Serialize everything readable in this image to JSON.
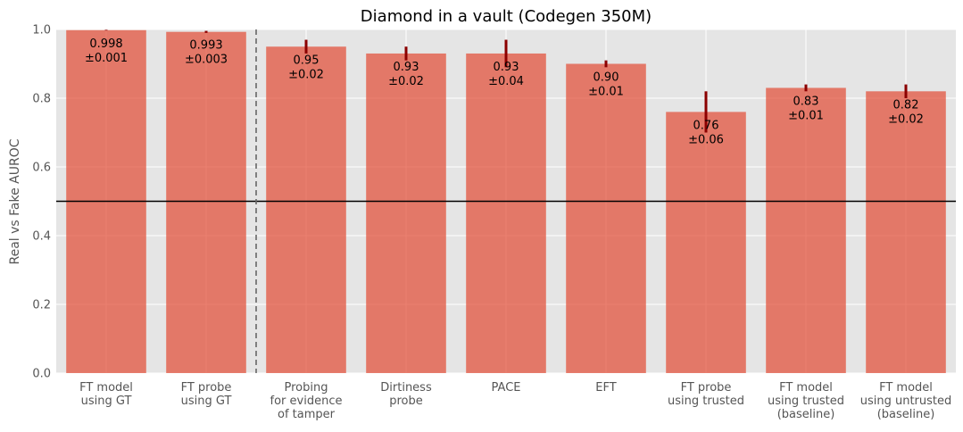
{
  "chart_data": {
    "type": "bar",
    "title": "Diamond in a vault (Codegen 350M)",
    "xlabel": "",
    "ylabel": "Real vs Fake AUROC",
    "ylim": [
      0,
      1.0
    ],
    "yticks": [
      "0.0",
      "0.2",
      "0.4",
      "0.6",
      "0.8",
      "1.0"
    ],
    "grid": true,
    "reference_line": 0.5,
    "separator_after_index": 1,
    "categories": [
      "FT model\nusing GT",
      "FT probe\nusing GT",
      "Probing\nfor evidence\nof tamper",
      "Dirtiness\nprobe",
      "PACE",
      "EFT",
      "FT probe\nusing trusted",
      "FT model\nusing trusted\n(baseline)",
      "FT model\nusing untrusted\n(baseline)"
    ],
    "values": [
      0.998,
      0.993,
      0.95,
      0.93,
      0.93,
      0.9,
      0.76,
      0.83,
      0.82
    ],
    "errors": [
      0.001,
      0.003,
      0.02,
      0.02,
      0.04,
      0.01,
      0.06,
      0.01,
      0.02
    ],
    "value_labels": [
      "0.998",
      "0.993",
      "0.95",
      "0.93",
      "0.93",
      "0.90",
      "0.76",
      "0.83",
      "0.82"
    ],
    "error_labels": [
      "±0.001",
      "±0.003",
      "±0.02",
      "±0.02",
      "±0.04",
      "±0.01",
      "±0.06",
      "±0.01",
      "±0.02"
    ],
    "colors": {
      "bar": "#E24A33",
      "error": "#8B0000",
      "background": "#E5E5E5",
      "grid": "#FFFFFF",
      "reference": "#000000",
      "separator": "#666666"
    }
  }
}
